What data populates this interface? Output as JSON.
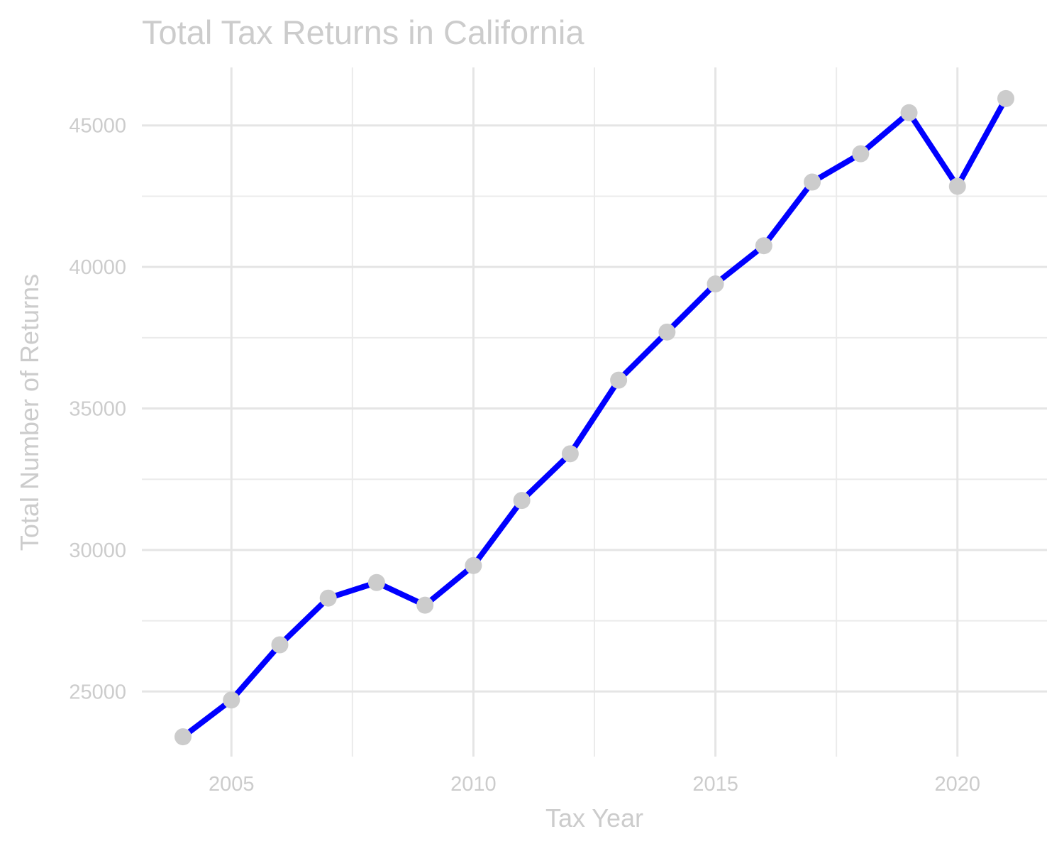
{
  "chart_data": {
    "type": "line",
    "title": "Total Tax Returns in California",
    "xlabel": "Tax Year",
    "ylabel": "Total Number of Returns",
    "x": [
      2004,
      2005,
      2006,
      2007,
      2008,
      2009,
      2010,
      2011,
      2012,
      2013,
      2014,
      2015,
      2016,
      2017,
      2018,
      2019,
      2020,
      2021
    ],
    "series": [
      {
        "values": [
          23400,
          24700,
          26650,
          28300,
          28850,
          28050,
          29450,
          31750,
          33400,
          36000,
          37700,
          39400,
          40750,
          43000,
          44000,
          45450,
          42850,
          45950
        ]
      }
    ],
    "xlim": [
      2003.15,
      2021.85
    ],
    "ylim": [
      22700,
      47050
    ],
    "x_ticks": [
      "2005",
      "2010",
      "2015",
      "2020"
    ],
    "y_ticks": [
      "25000",
      "30000",
      "35000",
      "40000",
      "45000"
    ],
    "grid": true,
    "line_color": "#0000ff",
    "point_color": "#cccccc",
    "text_color": "#cccccc"
  }
}
